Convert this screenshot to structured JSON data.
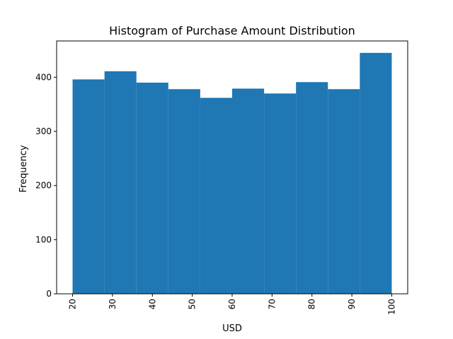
{
  "chart_data": {
    "type": "bar",
    "title": "Histogram of Purchase Amount Distribution",
    "xlabel": "USD",
    "ylabel": "Frequency",
    "bin_edges": [
      20,
      28,
      36,
      44,
      52,
      60,
      68,
      76,
      84,
      92,
      100
    ],
    "values": [
      396,
      411,
      390,
      378,
      362,
      379,
      370,
      391,
      378,
      445
    ],
    "xlim": [
      16,
      104
    ],
    "ylim": [
      0,
      467
    ],
    "x_ticks": [
      20,
      30,
      40,
      50,
      60,
      70,
      80,
      90,
      100
    ],
    "y_ticks": [
      0,
      100,
      200,
      300,
      400
    ],
    "x_tick_rotation": "vertical",
    "bar_color": "#1f77b4",
    "grid": false,
    "legend": "none"
  }
}
